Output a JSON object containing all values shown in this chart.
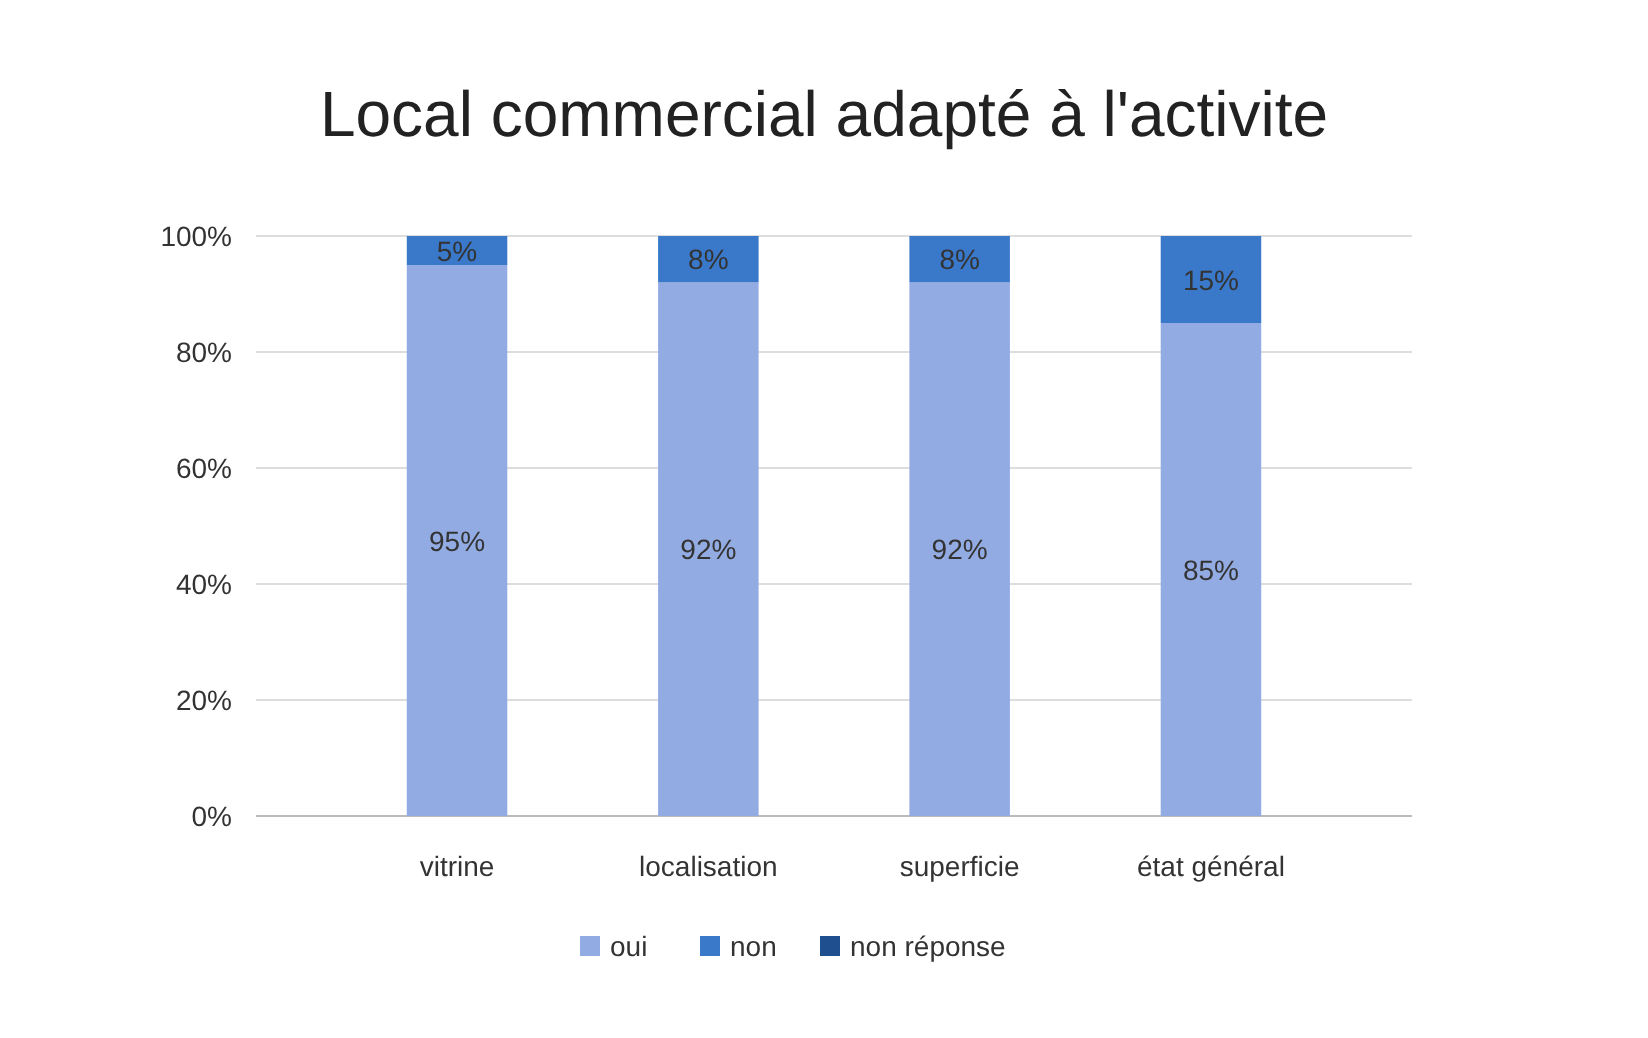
{
  "chart_data": {
    "type": "bar",
    "title": "Local commercial adapté à l'activite",
    "categories": [
      "vitrine",
      "localisation",
      "superficie",
      "état général"
    ],
    "stacked": true,
    "ylim": [
      0,
      100
    ],
    "yticks": [
      {
        "value": 0,
        "label": "0%"
      },
      {
        "value": 20,
        "label": "20%"
      },
      {
        "value": 40,
        "label": "40%"
      },
      {
        "value": 60,
        "label": "60%"
      },
      {
        "value": 80,
        "label": "80%"
      },
      {
        "value": 100,
        "label": "100%"
      }
    ],
    "grid": "y",
    "legend": "bottom",
    "series": [
      {
        "name": "oui",
        "color": "#93abe3",
        "values": [
          95,
          92,
          92,
          85
        ],
        "value_labels": [
          "95%",
          "92%",
          "92%",
          "85%"
        ]
      },
      {
        "name": "non",
        "color": "#3a78c9",
        "values": [
          5,
          8,
          8,
          15
        ],
        "value_labels": [
          "5%",
          "8%",
          "8%",
          "15%"
        ]
      },
      {
        "name": "non réponse",
        "color": "#1f4f8f",
        "values": [
          0,
          0,
          0,
          0
        ]
      }
    ]
  }
}
